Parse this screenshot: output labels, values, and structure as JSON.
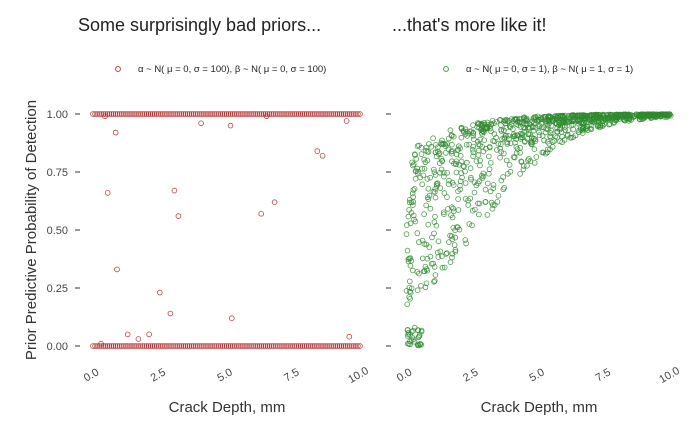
{
  "chart_data": [
    {
      "type": "scatter",
      "title": "Some surprisingly bad priors...",
      "xlabel": "Crack Depth, mm",
      "ylabel": "Prior Predictive Probability of Detection",
      "xlim": [
        0,
        10
      ],
      "ylim": [
        0,
        1
      ],
      "x_ticks": [
        "0.0",
        "2.5",
        "5.0",
        "7.5",
        "10.0"
      ],
      "y_ticks": [
        "0.00",
        "0.25",
        "0.50",
        "0.75",
        "1.00"
      ],
      "legend": "top-right",
      "series": [
        {
          "name": "α ~ N( μ = 0, σ = 100),  β  ~ N( μ = 0, σ = 100)",
          "color": "#b22222",
          "marker": "open-circle",
          "points": [
            [
              0.55,
              0.66
            ],
            [
              0.85,
              0.92
            ],
            [
              0.9,
              0.33
            ],
            [
              0.45,
              0.99
            ],
            [
              1.3,
              0.05
            ],
            [
              1.7,
              0.03
            ],
            [
              2.1,
              0.05
            ],
            [
              2.5,
              0.23
            ],
            [
              2.9,
              0.14
            ],
            [
              3.05,
              0.67
            ],
            [
              3.2,
              0.56
            ],
            [
              4.05,
              0.96
            ],
            [
              5.15,
              0.95
            ],
            [
              5.2,
              0.12
            ],
            [
              6.3,
              0.57
            ],
            [
              6.8,
              0.62
            ],
            [
              6.5,
              0.99
            ],
            [
              8.4,
              0.84
            ],
            [
              8.6,
              0.82
            ],
            [
              9.5,
              0.97
            ],
            [
              0.3,
              0.01
            ],
            [
              9.6,
              0.04
            ]
          ]
        }
      ]
    },
    {
      "type": "scatter",
      "title": "...that's more like it!",
      "xlabel": "Crack Depth, mm",
      "ylabel": "",
      "xlim": [
        0,
        10
      ],
      "ylim": [
        0,
        1
      ],
      "x_ticks": [
        "0.0",
        "2.5",
        "5.0",
        "7.5",
        "10.0"
      ],
      "y_ticks": [
        "0.00",
        "0.25",
        "0.50",
        "0.75",
        "1.00"
      ],
      "legend": "top-right",
      "series": [
        {
          "name": "α ~ N( μ = 0, σ = 1),  β  ~ N( μ = 1, σ = 1)",
          "color": "#2e8b2e",
          "marker": "open-circle",
          "n_points": 1000,
          "distribution": "dense cloud of points rising toward 1.00 as crack depth increases"
        }
      ]
    }
  ]
}
